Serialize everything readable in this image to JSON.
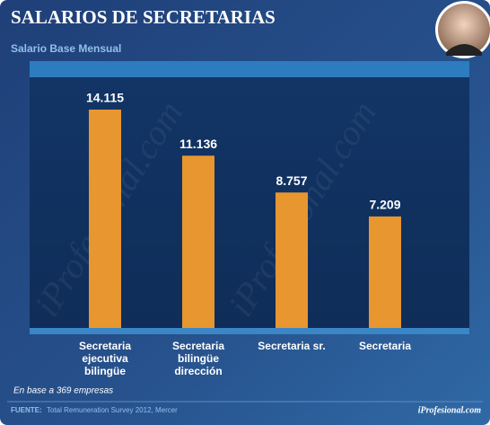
{
  "chart_data": {
    "type": "bar",
    "title": "SALARIOS DE SECRETARIAS",
    "subtitle": "Salario Base Mensual",
    "categories": [
      "Secretaria ejecutiva bilingüe",
      "Secretaria bilingüe dirección",
      "Secretaria sr.",
      "Secretaria"
    ],
    "values": [
      14115,
      11136,
      8757,
      7209
    ],
    "value_labels": [
      "14.115",
      "11.136",
      "8.757",
      "7.209"
    ],
    "color": "#e8962f",
    "note": "En base a 369 empresas",
    "source_label": "FUENTE:",
    "source": "Total Remuneration Survey 2012, Mercer",
    "brand": "iProfesional.com"
  }
}
